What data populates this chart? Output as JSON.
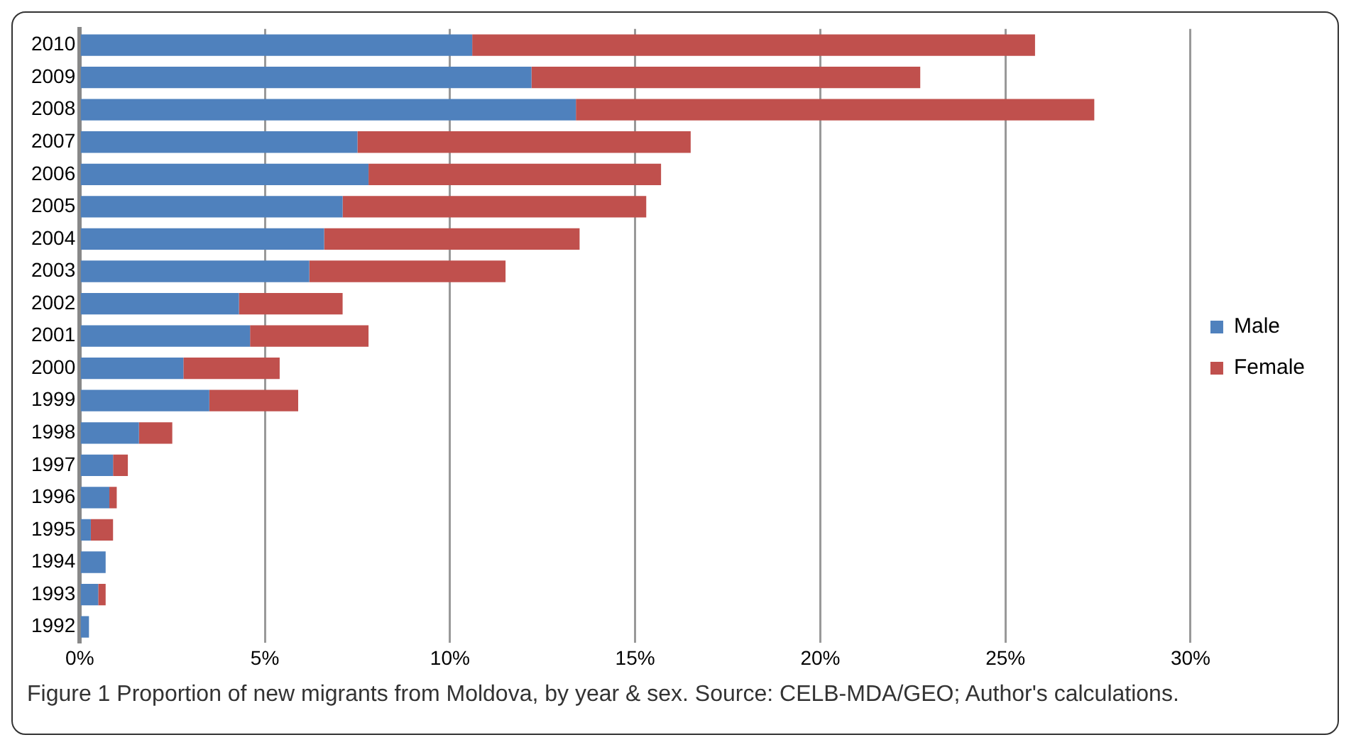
{
  "chart_data": {
    "type": "bar",
    "orientation": "horizontal",
    "stacked": true,
    "categories": [
      "2010",
      "2009",
      "2008",
      "2007",
      "2006",
      "2005",
      "2004",
      "2003",
      "2002",
      "2001",
      "2000",
      "1999",
      "1998",
      "1997",
      "1996",
      "1995",
      "1994",
      "1993",
      "1992"
    ],
    "series": [
      {
        "name": "Male",
        "color": "#4f81bd",
        "values": [
          10.6,
          12.2,
          13.4,
          7.5,
          7.8,
          7.1,
          6.6,
          6.2,
          4.3,
          4.6,
          2.8,
          3.5,
          1.6,
          0.9,
          0.8,
          0.3,
          0.7,
          0.5,
          0.25
        ]
      },
      {
        "name": "Female",
        "color": "#c0504d",
        "values": [
          15.2,
          10.5,
          14.0,
          9.0,
          7.9,
          8.2,
          6.9,
          5.3,
          2.8,
          3.2,
          2.6,
          2.4,
          0.9,
          0.4,
          0.2,
          0.6,
          0,
          0.2,
          0
        ]
      }
    ],
    "xlim": [
      0,
      30
    ],
    "xticks": [
      {
        "value": 0,
        "label": "0%"
      },
      {
        "value": 5,
        "label": "5%"
      },
      {
        "value": 10,
        "label": "10%"
      },
      {
        "value": 15,
        "label": "15%"
      },
      {
        "value": 20,
        "label": "20%"
      },
      {
        "value": 25,
        "label": "25%"
      },
      {
        "value": 30,
        "label": "30%"
      }
    ],
    "grid": "x",
    "legend": "right",
    "annotations": [
      "Figure 1 Proportion of new migrants from Moldova, by year & sex. Source: CELB-MDA/GEO; Author's calculations."
    ]
  }
}
